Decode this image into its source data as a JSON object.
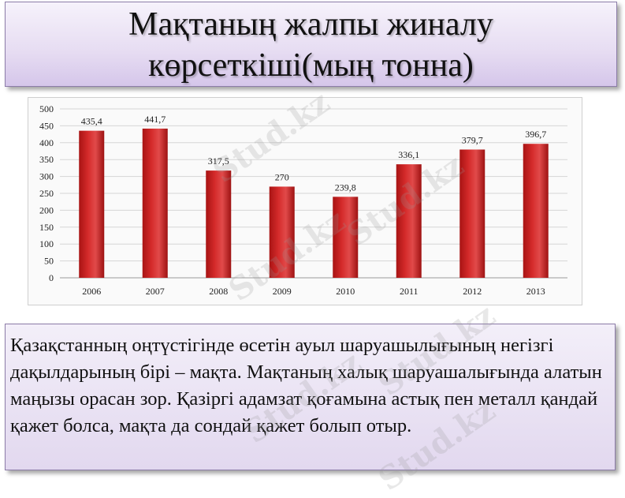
{
  "title": {
    "line1": "Мақтаның жалпы жиналу",
    "line2": "көрсеткіші(мың тонна)"
  },
  "body_text": "Қазақстанның оңтүстігінде өсетін ауыл шаруашылығының негізгі дақылдарының бірі – мақта. Мақтаның халық шаруашалығында алатын маңызы орасан зор. Қазіргі адамзат қоғамына астық пен металл қандай қажет болса, мақта да сондай қажет болып отыр.",
  "watermark": "Stud.kz",
  "chart_data": {
    "type": "bar",
    "categories": [
      "2006",
      "2007",
      "2008",
      "2009",
      "2010",
      "2011",
      "2012",
      "2013"
    ],
    "values": [
      435.4,
      441.7,
      317.5,
      270,
      239.8,
      336.1,
      379.7,
      396.7
    ],
    "data_labels": [
      "435,4",
      "441,7",
      "317,5",
      "270",
      "239,8",
      "336,1",
      "379,7",
      "396,7"
    ],
    "yticks": [
      "0",
      "50",
      "100",
      "150",
      "200",
      "250",
      "300",
      "350",
      "400",
      "450",
      "500"
    ],
    "ylim": [
      0,
      500
    ],
    "title": "",
    "xlabel": "",
    "ylabel": "",
    "grid": true,
    "bar_color": "#d42a2a"
  }
}
